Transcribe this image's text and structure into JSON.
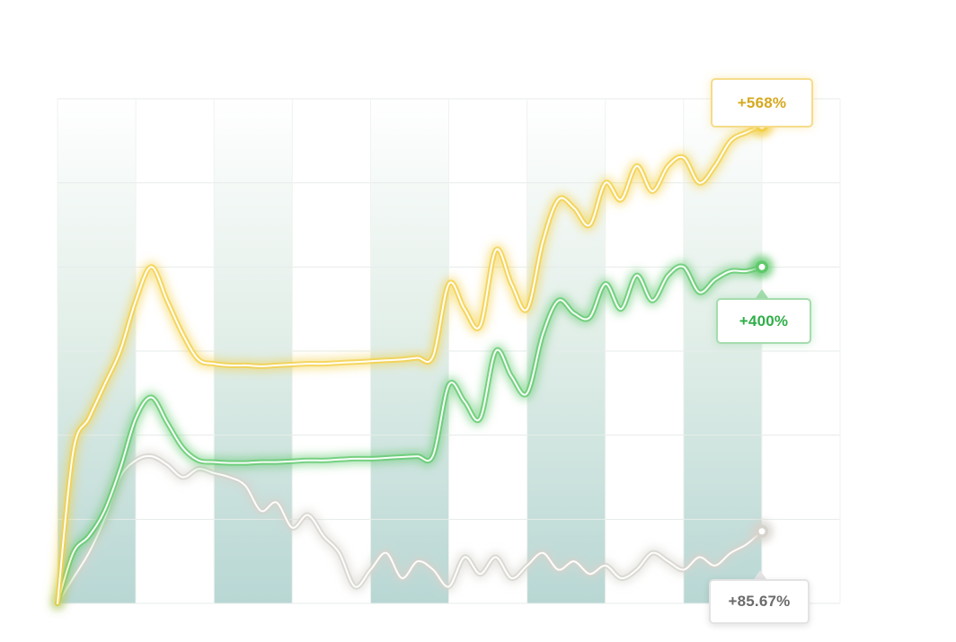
{
  "chart_data": {
    "type": "line",
    "title": "",
    "xlabel": "",
    "ylabel": "",
    "grid": true,
    "ylim": [
      0,
      600
    ],
    "x": [
      0,
      1,
      2,
      3,
      4,
      5,
      6,
      7,
      8,
      9,
      10,
      11,
      12,
      13,
      14,
      15,
      16,
      17,
      18,
      19,
      20,
      21,
      22,
      23,
      24,
      25,
      26,
      27,
      28,
      29,
      30,
      31,
      32,
      33,
      34,
      35,
      36,
      37,
      38,
      39,
      40,
      41,
      42,
      43,
      44,
      45
    ],
    "series": [
      {
        "color": "#f3cf45",
        "values": [
          0,
          180,
          220,
          260,
          300,
          360,
          400,
          360,
          320,
          290,
          285,
          283,
          283,
          282,
          283,
          284,
          285,
          285,
          286,
          287,
          288,
          289,
          290,
          292,
          294,
          380,
          350,
          330,
          420,
          380,
          350,
          430,
          480,
          470,
          450,
          500,
          480,
          520,
          490,
          520,
          530,
          500,
          520,
          550,
          560,
          568
        ]
      },
      {
        "color": "#5fc96c",
        "values": [
          0,
          60,
          80,
          110,
          160,
          220,
          245,
          215,
          185,
          170,
          168,
          167,
          167,
          168,
          168,
          169,
          170,
          170,
          171,
          172,
          172,
          173,
          174,
          175,
          176,
          260,
          240,
          220,
          300,
          270,
          250,
          320,
          360,
          345,
          340,
          380,
          350,
          390,
          360,
          390,
          400,
          370,
          385,
          395,
          395,
          400
        ]
      },
      {
        "color": "#d6d3cc",
        "values": [
          0,
          30,
          60,
          100,
          150,
          170,
          175,
          165,
          150,
          160,
          155,
          150,
          140,
          110,
          120,
          90,
          105,
          80,
          60,
          20,
          40,
          60,
          30,
          50,
          40,
          20,
          55,
          35,
          55,
          30,
          45,
          60,
          40,
          50,
          35,
          45,
          30,
          40,
          60,
          50,
          40,
          55,
          45,
          60,
          70,
          85.67
        ]
      }
    ],
    "annotations": [
      {
        "series": 0,
        "label": "+568%",
        "color": "#d6a81e"
      },
      {
        "series": 1,
        "label": "+400%",
        "color": "#2fae48"
      },
      {
        "series": 2,
        "label": "+85.67%",
        "color": "#6b6b6b"
      }
    ]
  }
}
